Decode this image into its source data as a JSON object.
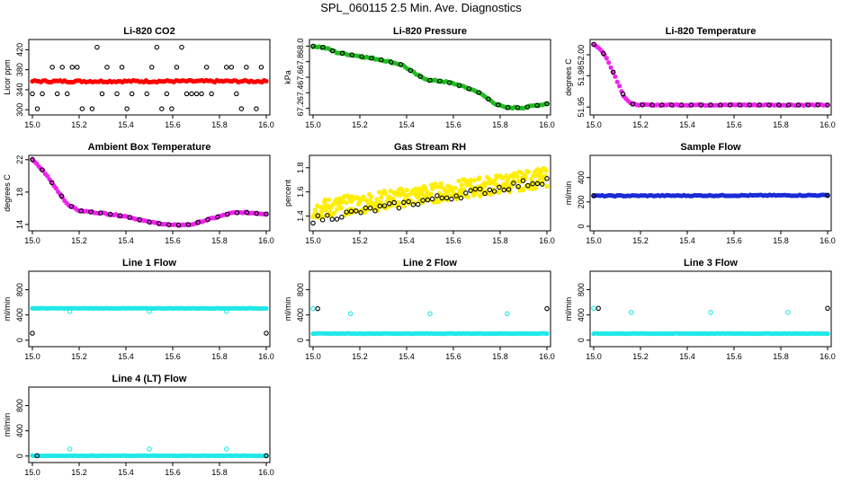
{
  "main_title": "SPL_060115  2.5 Min. Ave. Diagnostics",
  "chart_data": [
    {
      "type": "scatter",
      "title": "Li-820 CO2",
      "ylabel": "Licor ppm",
      "xlim": [
        15.0,
        16.0
      ],
      "ylim": [
        295,
        435
      ],
      "xticks": [
        "15.0",
        "15.2",
        "15.4",
        "15.6",
        "15.8",
        "16.0"
      ],
      "yticks": [
        {
          "v": 300,
          "label": "300"
        },
        {
          "v": 340,
          "label": "340"
        },
        {
          "v": 380,
          "label": "380"
        },
        {
          "v": 420,
          "label": "420"
        }
      ],
      "series": [
        {
          "name": "line-flags",
          "color": "#000000",
          "style": "open",
          "pattern": "co2flags"
        },
        {
          "name": "co2",
          "color": "#ff0000",
          "style": "filled",
          "x": [
            15.0,
            16.0
          ],
          "y": [
            357,
            357
          ],
          "noise": 2
        }
      ]
    },
    {
      "type": "scatter",
      "title": "Li-820 Pressure",
      "ylabel": "kPa",
      "xlim": [
        15.0,
        16.0
      ],
      "ylim": [
        67.15,
        68.05
      ],
      "xticks": [
        "15.0",
        "15.2",
        "15.4",
        "15.6",
        "15.8",
        "16.0"
      ],
      "yticks": [
        {
          "v": 67.2,
          "label": "67.2"
        },
        {
          "v": 67.4,
          "label": "67.4"
        },
        {
          "v": 67.6,
          "label": "67.6"
        },
        {
          "v": 67.8,
          "label": "67.8"
        },
        {
          "v": 68.0,
          "label": "68.0"
        }
      ],
      "series": [
        {
          "name": "pressure",
          "color": "#22bb22",
          "style": "filled",
          "x": [
            15.0,
            15.05,
            15.1,
            15.2,
            15.3,
            15.38,
            15.45,
            15.5,
            15.55,
            15.6,
            15.7,
            15.78,
            15.82,
            15.9,
            16.0
          ],
          "y": [
            68.0,
            67.98,
            67.92,
            67.87,
            67.82,
            67.76,
            67.62,
            67.56,
            67.55,
            67.52,
            67.42,
            67.26,
            67.21,
            67.21,
            67.26
          ],
          "noise": 0.01
        },
        {
          "name": "pressure-ave",
          "color": "#000000",
          "style": "open",
          "x": [
            15.0,
            15.05,
            15.1,
            15.2,
            15.3,
            15.38,
            15.45,
            15.5,
            15.55,
            15.6,
            15.7,
            15.78,
            15.82,
            15.9,
            16.0
          ],
          "y": [
            68.0,
            67.98,
            67.92,
            67.87,
            67.82,
            67.76,
            67.62,
            67.56,
            67.55,
            67.52,
            67.42,
            67.26,
            67.21,
            67.21,
            67.26
          ],
          "every": 4
        }
      ]
    },
    {
      "type": "scatter",
      "title": "Li-820 Temperature",
      "ylabel": "degrees C",
      "xlim": [
        15.0,
        16.0
      ],
      "ylim": [
        51.945,
        52.012
      ],
      "xticks": [
        "15.0",
        "15.2",
        "15.4",
        "15.6",
        "15.8",
        "16.0"
      ],
      "yticks": [
        {
          "v": 51.95,
          "label": "51.95"
        },
        {
          "v": 51.98,
          "label": "51.98"
        },
        {
          "v": 52.0,
          "label": "52.00"
        }
      ],
      "series": [
        {
          "name": "licor-temp",
          "color": "#ee22ee",
          "style": "filled",
          "x": [
            15.0,
            15.03,
            15.06,
            15.1,
            15.13,
            15.16,
            15.2,
            15.3,
            16.0
          ],
          "y": [
            52.01,
            52.005,
            51.995,
            51.975,
            51.96,
            51.953,
            51.952,
            51.952,
            51.952
          ],
          "noise": 0.0005
        },
        {
          "name": "licor-temp-ave",
          "color": "#000000",
          "style": "open",
          "x": [
            15.0,
            15.03,
            15.06,
            15.1,
            15.13,
            15.16,
            15.2,
            15.3,
            16.0
          ],
          "y": [
            52.01,
            52.005,
            51.995,
            51.975,
            51.96,
            51.953,
            51.952,
            51.952,
            51.952
          ],
          "every": 4
        }
      ]
    },
    {
      "type": "scatter",
      "title": "Ambient Box Temperature",
      "ylabel": "degrees C",
      "xlim": [
        15.0,
        16.0
      ],
      "ylim": [
        13.55,
        22.2
      ],
      "xticks": [
        "15.0",
        "15.2",
        "15.4",
        "15.6",
        "15.8",
        "16.0"
      ],
      "yticks": [
        {
          "v": 14,
          "label": "14"
        },
        {
          "v": 18,
          "label": "18"
        },
        {
          "v": 22,
          "label": "22"
        }
      ],
      "series": [
        {
          "name": "box-temp",
          "color": "#ee22ee",
          "style": "filled",
          "x": [
            15.0,
            15.05,
            15.1,
            15.15,
            15.2,
            15.3,
            15.4,
            15.5,
            15.6,
            15.68,
            15.75,
            15.8,
            15.85,
            15.9,
            16.0
          ],
          "y": [
            22.0,
            20.5,
            18.5,
            16.5,
            15.7,
            15.4,
            15.0,
            14.3,
            13.9,
            14.0,
            14.6,
            15.0,
            15.4,
            15.5,
            15.3
          ],
          "noise": 0.08
        },
        {
          "name": "box-temp-ave",
          "color": "#000000",
          "style": "open",
          "x": [
            15.0,
            15.05,
            15.1,
            15.15,
            15.2,
            15.3,
            15.4,
            15.5,
            15.6,
            15.68,
            15.75,
            15.8,
            15.85,
            15.9,
            16.0
          ],
          "y": [
            22.0,
            20.5,
            18.5,
            16.5,
            15.7,
            15.4,
            15.0,
            14.3,
            13.9,
            14.0,
            14.6,
            15.0,
            15.4,
            15.5,
            15.3
          ],
          "every": 4
        }
      ]
    },
    {
      "type": "scatter",
      "title": "Gas Stream RH",
      "ylabel": "percent",
      "xlim": [
        15.0,
        16.0
      ],
      "ylim": [
        1.3,
        1.88
      ],
      "xticks": [
        "15.0",
        "15.2",
        "15.4",
        "15.6",
        "15.8",
        "16.0"
      ],
      "yticks": [
        {
          "v": 1.4,
          "label": "1.4"
        },
        {
          "v": 1.6,
          "label": "1.6"
        },
        {
          "v": 1.8,
          "label": "1.8"
        }
      ],
      "series": [
        {
          "name": "rh",
          "color": "#ffee00",
          "style": "filled",
          "x": [
            15.0,
            16.0
          ],
          "y": [
            1.45,
            1.72
          ],
          "noise": 0.08,
          "dense": 3
        },
        {
          "name": "rh-ave",
          "color": "#000000",
          "style": "open",
          "x": [
            15.0,
            16.0
          ],
          "y": [
            1.37,
            1.7
          ],
          "every": 2,
          "noise": 0.03
        }
      ]
    },
    {
      "type": "scatter",
      "title": "Sample Flow",
      "ylabel": "ml/min",
      "xlim": [
        15.0,
        16.0
      ],
      "ylim": [
        -15,
        560
      ],
      "xticks": [
        "15.0",
        "15.2",
        "15.4",
        "15.6",
        "15.8",
        "16.0"
      ],
      "yticks": [
        {
          "v": 0,
          "label": "0"
        },
        {
          "v": 200,
          "label": "200"
        },
        {
          "v": 400,
          "label": "400"
        }
      ],
      "series": [
        {
          "name": "sample-flow",
          "color": "#1a2bd6",
          "style": "filled",
          "x": [
            15.0,
            16.0
          ],
          "y": [
            250,
            255
          ],
          "noise": 4
        },
        {
          "name": "sample-flow-ave",
          "color": "#000000",
          "style": "open",
          "x": [
            15.0,
            16.0
          ],
          "y": [
            252,
            255
          ],
          "every": 4
        }
      ]
    },
    {
      "type": "scatter",
      "title": "Line 1 Flow",
      "ylabel": "ml/min",
      "xlim": [
        15.0,
        16.0
      ],
      "ylim": [
        -60,
        1050
      ],
      "xticks": [
        "15.0",
        "15.2",
        "15.4",
        "15.6",
        "15.8",
        "16.0"
      ],
      "yticks": [
        {
          "v": 0,
          "label": "0"
        },
        {
          "v": 400,
          "label": "400"
        },
        {
          "v": 800,
          "label": "800"
        }
      ],
      "series": [
        {
          "name": "line1-high",
          "color": "#22e8e8",
          "style": "filled",
          "x": [
            15.0,
            16.0
          ],
          "y": [
            505,
            505
          ],
          "noise": 3
        },
        {
          "name": "line1-low",
          "color": "#000000",
          "style": "open",
          "x": [
            15.0,
            16.0
          ],
          "y": [
            110,
            110
          ],
          "every": 2
        },
        {
          "name": "line1-dips",
          "color": "#22e8e8",
          "style": "open",
          "x": [
            15.16,
            15.5,
            15.83
          ],
          "y": [
            455,
            455,
            455
          ]
        }
      ]
    },
    {
      "type": "scatter",
      "title": "Line 2 Flow",
      "ylabel": "ml/min",
      "xlim": [
        15.0,
        16.0
      ],
      "ylim": [
        -60,
        1050
      ],
      "xticks": [
        "15.0",
        "15.2",
        "15.4",
        "15.6",
        "15.8",
        "16.0"
      ],
      "yticks": [
        {
          "v": 0,
          "label": "0"
        },
        {
          "v": 400,
          "label": "400"
        },
        {
          "v": 800,
          "label": "800"
        }
      ],
      "series": [
        {
          "name": "line2-low",
          "color": "#22e8e8",
          "style": "filled",
          "x": [
            15.0,
            16.0
          ],
          "y": [
            105,
            105
          ],
          "noise": 3
        },
        {
          "name": "line2-high",
          "color": "#000000",
          "style": "open",
          "x": [
            15.02,
            16.0
          ],
          "y": [
            500,
            500
          ],
          "every": 2
        },
        {
          "name": "line2-dips",
          "color": "#22e8e8",
          "style": "open",
          "x": [
            15.0,
            15.16,
            15.5,
            15.83
          ],
          "y": [
            500,
            420,
            420,
            420
          ]
        }
      ]
    },
    {
      "type": "scatter",
      "title": "Line 3 Flow",
      "ylabel": "ml/min",
      "xlim": [
        15.0,
        16.0
      ],
      "ylim": [
        -60,
        1050
      ],
      "xticks": [
        "15.0",
        "15.2",
        "15.4",
        "15.6",
        "15.8",
        "16.0"
      ],
      "yticks": [
        {
          "v": 0,
          "label": "0"
        },
        {
          "v": 400,
          "label": "400"
        },
        {
          "v": 800,
          "label": "800"
        }
      ],
      "series": [
        {
          "name": "line3-low",
          "color": "#22e8e8",
          "style": "filled",
          "x": [
            15.0,
            16.0
          ],
          "y": [
            105,
            105
          ],
          "noise": 3
        },
        {
          "name": "line3-high",
          "color": "#000000",
          "style": "open",
          "x": [
            15.02,
            16.0
          ],
          "y": [
            505,
            505
          ],
          "every": 2
        },
        {
          "name": "line3-dips",
          "color": "#22e8e8",
          "style": "open",
          "x": [
            15.0,
            15.16,
            15.5,
            15.83
          ],
          "y": [
            505,
            440,
            440,
            440
          ]
        }
      ]
    },
    {
      "type": "scatter",
      "title": "Line 4 (LT) Flow",
      "ylabel": "ml/min",
      "xlim": [
        15.0,
        16.0
      ],
      "ylim": [
        -60,
        1050
      ],
      "xticks": [
        "15.0",
        "15.2",
        "15.4",
        "15.6",
        "15.8",
        "16.0"
      ],
      "yticks": [
        {
          "v": 0,
          "label": "0"
        },
        {
          "v": 400,
          "label": "400"
        },
        {
          "v": 800,
          "label": "800"
        }
      ],
      "series": [
        {
          "name": "line4",
          "color": "#22e8e8",
          "style": "filled",
          "x": [
            15.0,
            16.0
          ],
          "y": [
            5,
            5
          ],
          "noise": 3
        },
        {
          "name": "line4-ave",
          "color": "#000000",
          "style": "open",
          "x": [
            15.02,
            16.0
          ],
          "y": [
            5,
            5
          ],
          "every": 2
        },
        {
          "name": "line4-spikes",
          "color": "#22e8e8",
          "style": "open",
          "x": [
            15.16,
            15.5,
            15.83
          ],
          "y": [
            110,
            110,
            110
          ]
        }
      ]
    }
  ]
}
